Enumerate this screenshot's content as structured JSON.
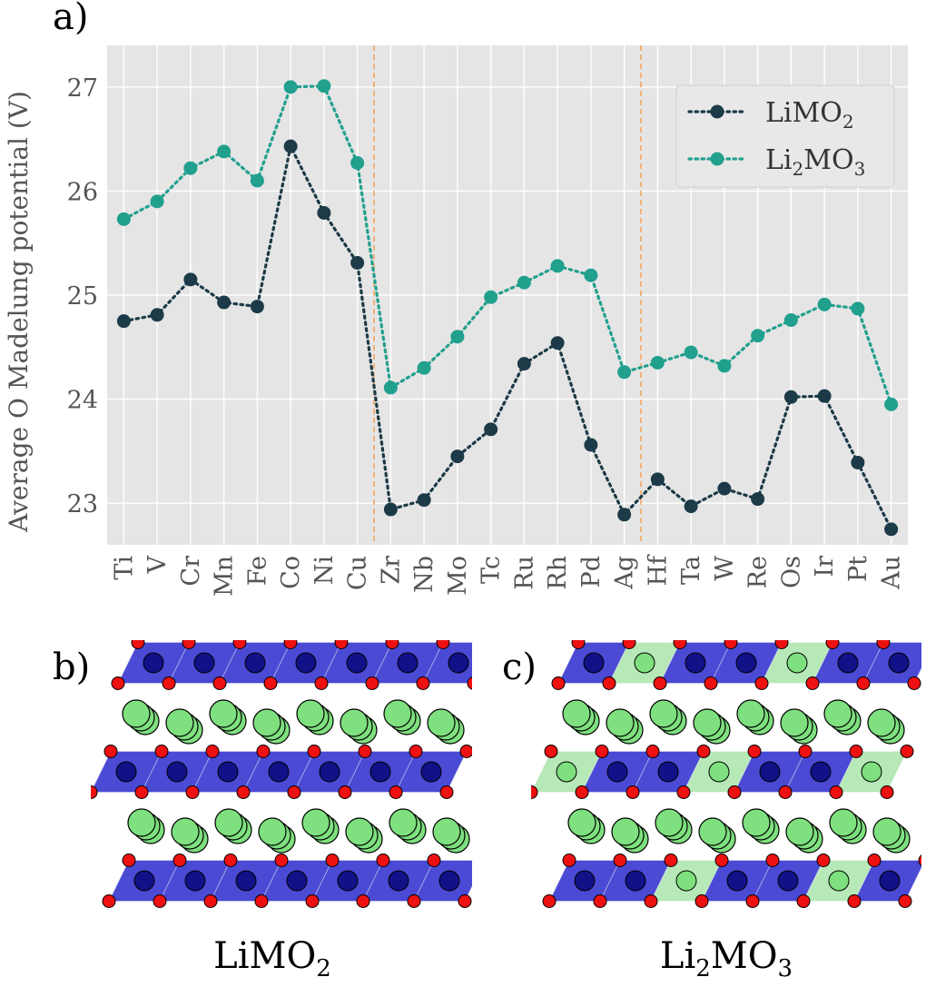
{
  "panels": {
    "a_label": "a)",
    "b_label": "b)",
    "c_label": "c)",
    "b_caption_main": "LiMO",
    "b_caption_sub": "2",
    "c_caption_main": "Li",
    "c_caption_sub1": "2",
    "c_caption_mid": "MO",
    "c_caption_sub2": "3"
  },
  "colors": {
    "plot_bg": "#e5e5e5",
    "grid": "#ffffff",
    "limo2": "#1c3a47",
    "li2mo3": "#21a08e",
    "divider": "#f4a460",
    "octahedra_blue": "#2a2acc",
    "octahedra_green": "#9fe0a0",
    "li_atom": "#7ee07e",
    "o_atom": "#ee1111"
  },
  "chart_data": {
    "type": "line",
    "ylabel": "Average O Madelung potential (V)",
    "xlabel": "",
    "ylim": [
      22.6,
      27.4
    ],
    "yticks": [
      23,
      24,
      25,
      26,
      27
    ],
    "grid": true,
    "legend_position": "top-right",
    "vertical_dividers_between": [
      [
        "Cu",
        "Zr"
      ],
      [
        "Ag",
        "Hf"
      ]
    ],
    "categories": [
      "Ti",
      "V",
      "Cr",
      "Mn",
      "Fe",
      "Co",
      "Ni",
      "Cu",
      "Zr",
      "Nb",
      "Mo",
      "Tc",
      "Ru",
      "Rh",
      "Pd",
      "Ag",
      "Hf",
      "Ta",
      "W",
      "Re",
      "Os",
      "Ir",
      "Pt",
      "Au"
    ],
    "series": [
      {
        "name": "LiMO2",
        "legend_main": "LiMO",
        "legend_sub": "2",
        "legend_post": "",
        "legend_sub2": "",
        "values": [
          24.75,
          24.81,
          25.15,
          24.93,
          24.89,
          26.43,
          25.79,
          25.31,
          22.94,
          23.03,
          23.45,
          23.71,
          24.34,
          24.54,
          23.56,
          22.89,
          23.23,
          22.97,
          23.14,
          23.04,
          24.02,
          24.03,
          23.39,
          22.75
        ]
      },
      {
        "name": "Li2MO3",
        "legend_main": "Li",
        "legend_sub": "2",
        "legend_post": "MO",
        "legend_sub2": "3",
        "values": [
          25.73,
          25.9,
          26.22,
          26.38,
          26.1,
          27.0,
          27.01,
          26.27,
          24.11,
          24.3,
          24.6,
          24.98,
          25.12,
          25.28,
          25.19,
          24.26,
          24.35,
          24.45,
          24.32,
          24.61,
          24.76,
          24.91,
          24.87,
          23.95
        ]
      }
    ]
  }
}
